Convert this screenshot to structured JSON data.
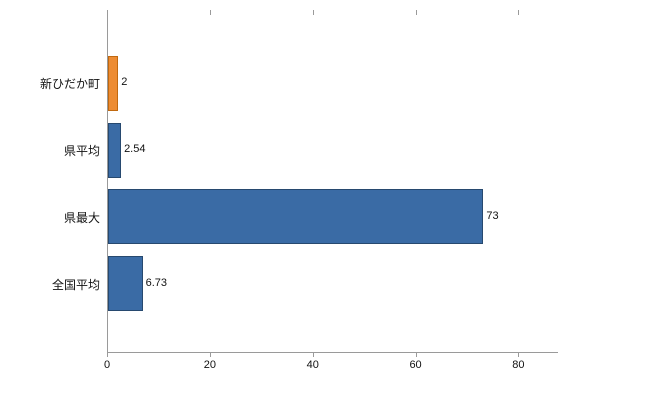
{
  "chart_data": {
    "type": "bar",
    "orientation": "horizontal",
    "title": "",
    "xlabel": "",
    "ylabel": "",
    "categories": [
      "新ひだか町",
      "県平均",
      "県最大",
      "全国平均"
    ],
    "values": [
      2,
      2.54,
      73,
      6.73
    ],
    "value_labels": [
      "2",
      "2.54",
      "73",
      "6.73"
    ],
    "bar_colors": [
      "#ED8C33",
      "#3A6BA5",
      "#3A6BA5",
      "#3A6BA5"
    ],
    "bar_border_colors": [
      "#C1690F",
      "#27496F",
      "#27496F",
      "#27496F"
    ],
    "xlim": [
      0,
      87.5
    ],
    "xticks": [
      0,
      20,
      40,
      60,
      80
    ],
    "grid": false,
    "legend": false,
    "axis_color": "#9a9a9a",
    "text_color": "#111111",
    "background_color": "#ffffff"
  }
}
